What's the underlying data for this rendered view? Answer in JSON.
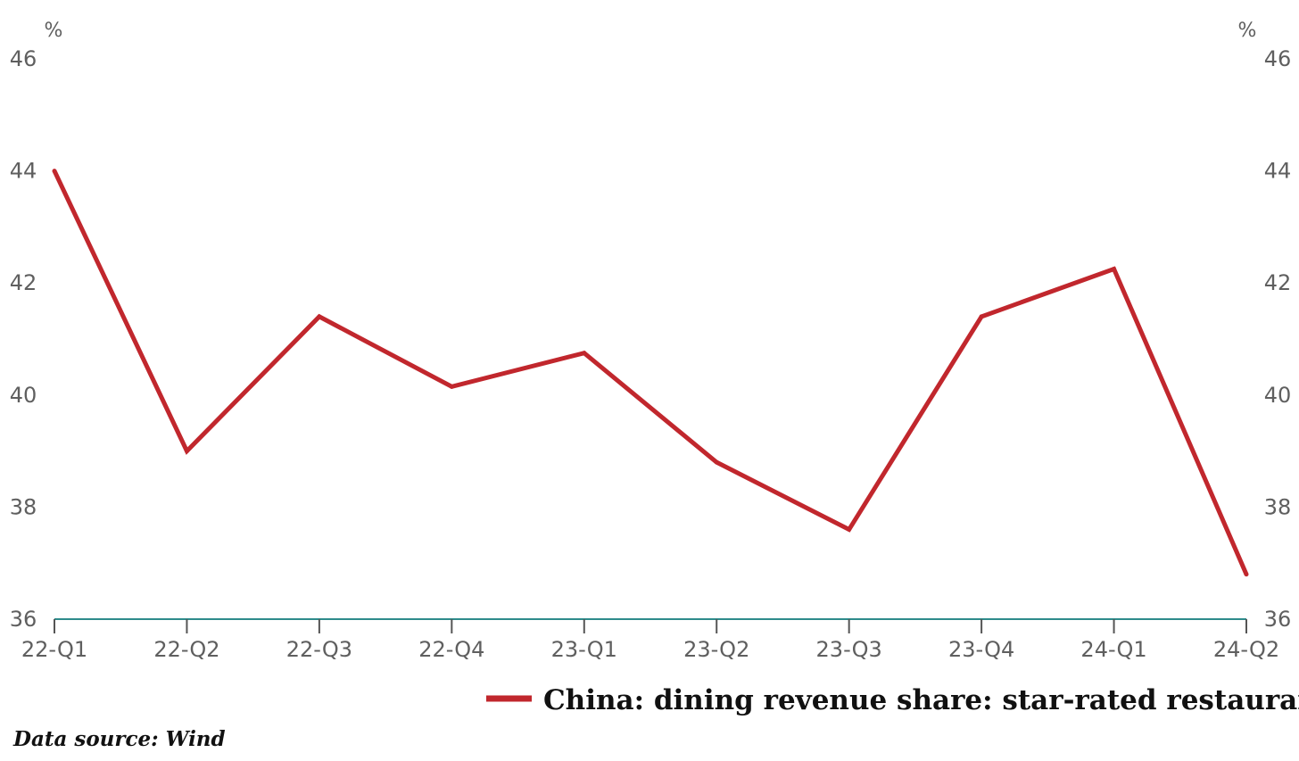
{
  "chart_data": {
    "type": "line",
    "categories": [
      "22-Q1",
      "22-Q2",
      "22-Q3",
      "22-Q4",
      "23-Q1",
      "23-Q2",
      "23-Q3",
      "23-Q4",
      "24-Q1",
      "24-Q2"
    ],
    "series": [
      {
        "name": "China: dining revenue share: star-rated restaurants",
        "values": [
          44.0,
          39.0,
          41.4,
          40.15,
          40.75,
          38.8,
          37.6,
          41.4,
          42.25,
          36.8
        ],
        "color": "#c1272d"
      }
    ],
    "ylim": [
      36,
      46
    ],
    "yticks": [
      36,
      38,
      40,
      42,
      44,
      46
    ],
    "y_unit_left": "%",
    "y_unit_right": "%",
    "axis_color": "#2e8b8b",
    "grid": false,
    "legend_position": "bottom-right",
    "source": "Data source: Wind"
  }
}
